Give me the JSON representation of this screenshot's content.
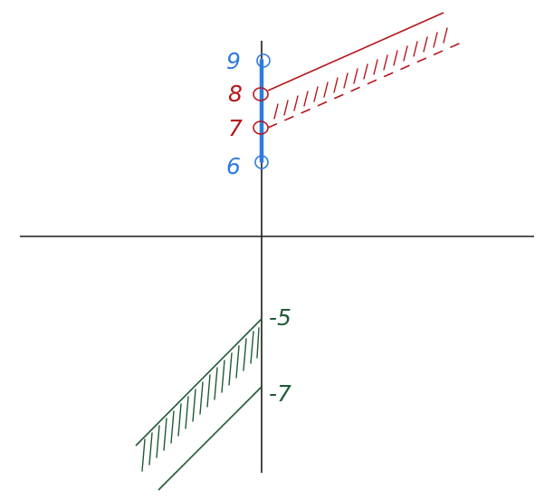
{
  "labels": {
    "blue_top": "9",
    "blue_bottom": "6",
    "red_top": "8",
    "red_bottom": "7",
    "green_top": "-5",
    "green_bottom": "-7"
  },
  "colors": {
    "axis": "#1a1a1a",
    "blue": "#2f7be0",
    "red": "#b3161b",
    "green": "#1f5a36",
    "background": "#ffffff"
  }
}
